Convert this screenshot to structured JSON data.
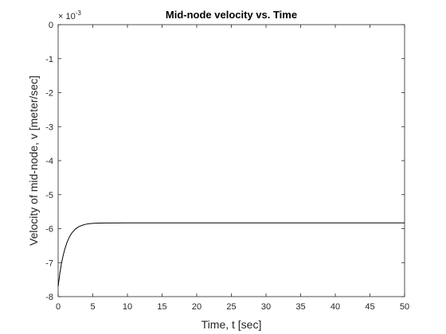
{
  "chart_data": {
    "type": "line",
    "title": "Mid-node velocity vs. Time",
    "xlabel": "Time, t [sec]",
    "ylabel": "Velocity of mid-node, v [meter/sec]",
    "y_exponent_base": "× 10",
    "y_exponent_power": "-3",
    "xlim": [
      0,
      50
    ],
    "ylim": [
      -8,
      0
    ],
    "xticks": [
      0,
      5,
      10,
      15,
      20,
      25,
      30,
      35,
      40,
      45,
      50
    ],
    "yticks": [
      0,
      -1,
      -2,
      -3,
      -4,
      -5,
      -6,
      -7,
      -8
    ],
    "grid": false,
    "series": [
      {
        "color": "#000000",
        "x": [
          0,
          0.25,
          0.5,
          0.75,
          1.0,
          1.25,
          1.5,
          1.75,
          2.0,
          2.5,
          3.0,
          3.5,
          4.0,
          4.5,
          5.0,
          5.5,
          6.0,
          7.0,
          8.0,
          10.0,
          15.0,
          20.0,
          30.0,
          40.0,
          50.0
        ],
        "y": [
          -7.7,
          -7.31,
          -7.0,
          -6.77,
          -6.58,
          -6.42,
          -6.3,
          -6.2,
          -6.12,
          -6.01,
          -5.94,
          -5.9,
          -5.87,
          -5.855,
          -5.845,
          -5.84,
          -5.837,
          -5.834,
          -5.832,
          -5.83,
          -5.83,
          -5.83,
          -5.83,
          -5.83,
          -5.83
        ]
      }
    ]
  }
}
